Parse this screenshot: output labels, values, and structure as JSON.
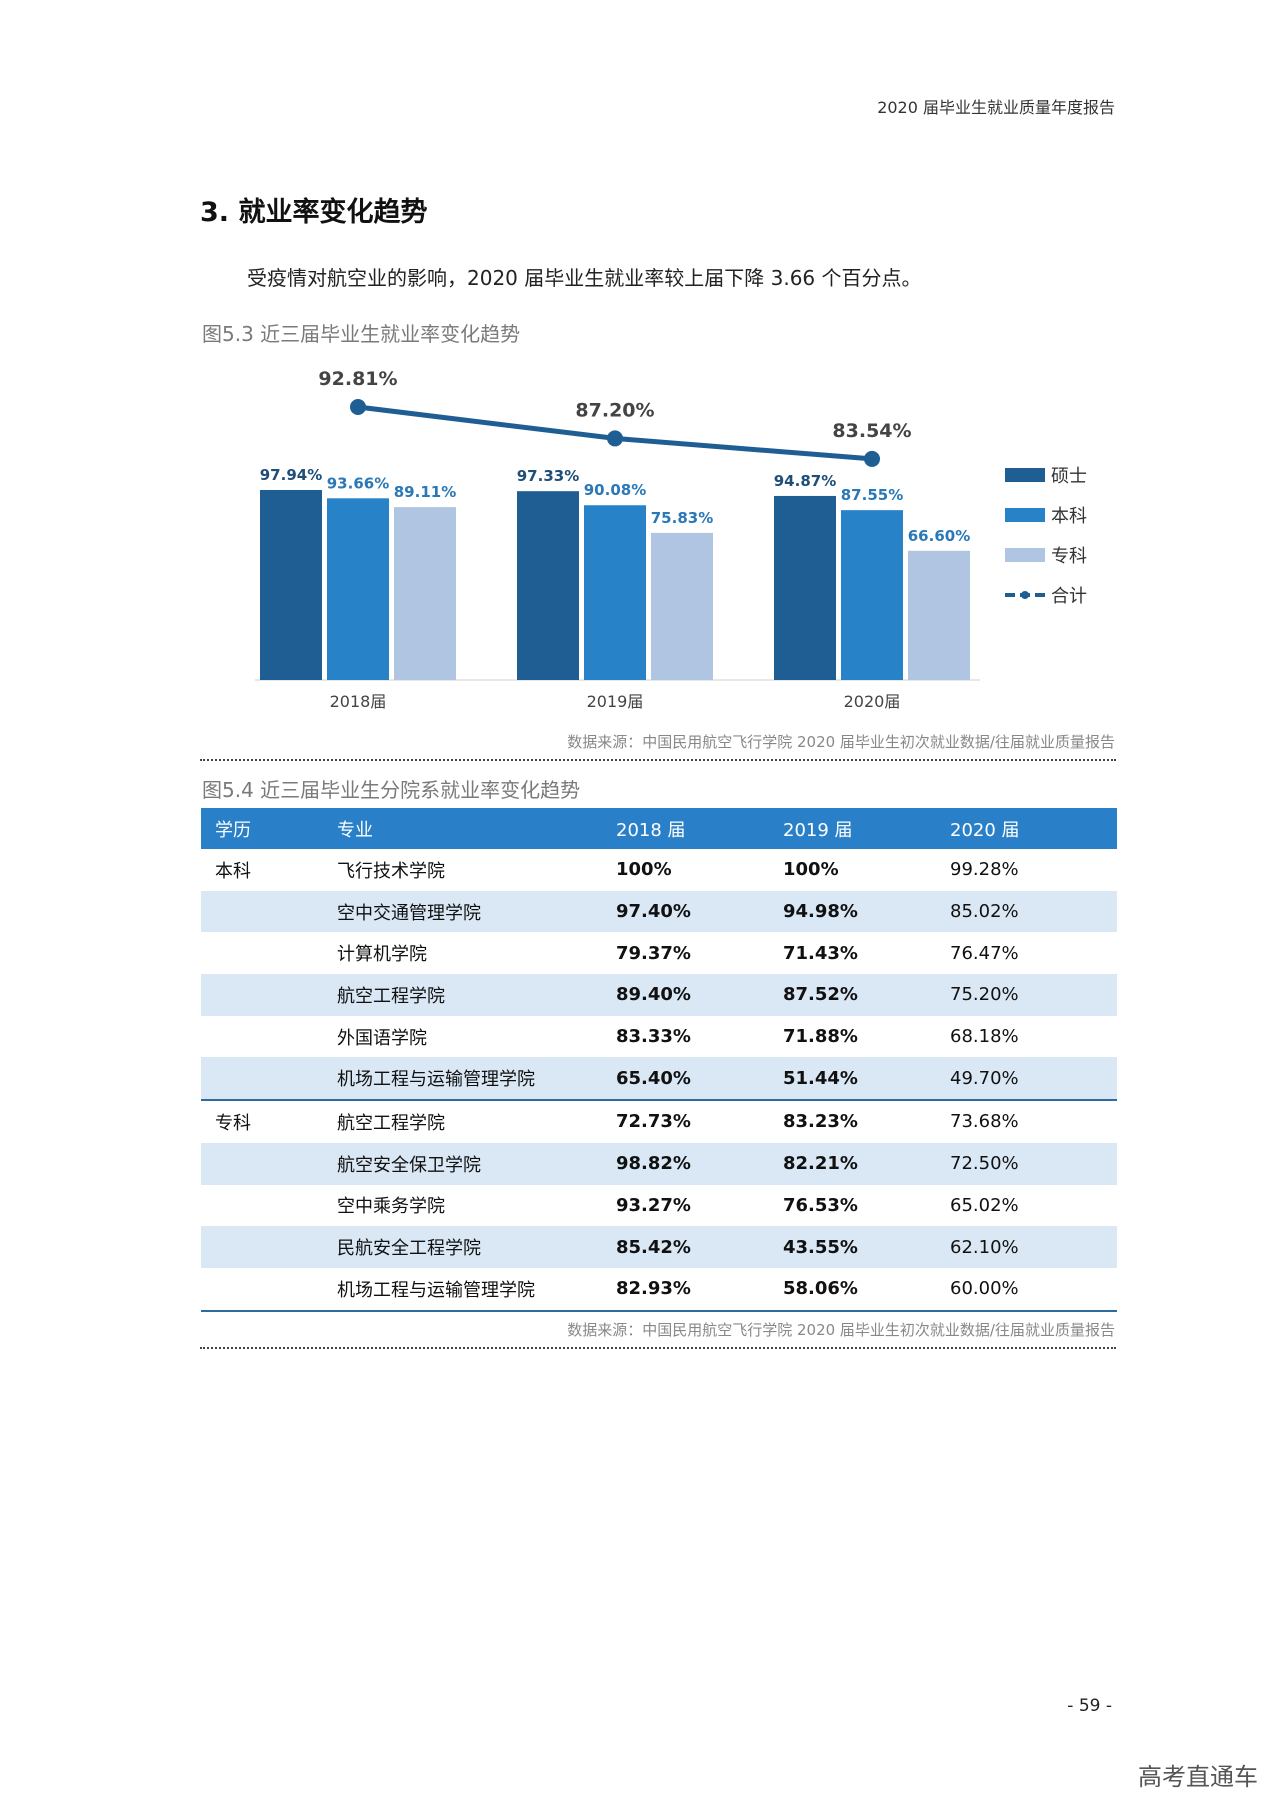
{
  "header": {
    "running_title": "2020 届毕业生就业质量年度报告"
  },
  "section": {
    "title": "3. 就业率变化趋势",
    "intro": "受疫情对航空业的影响，2020 届毕业生就业率较上届下降 3.66 个百分点。"
  },
  "figure1": {
    "caption": "图5.3 近三届毕业生就业率变化趋势",
    "source": "数据来源：中国民用航空飞行学院 2020 届毕业生初次就业数据/往届就业质量报告"
  },
  "chart_data": {
    "type": "bar",
    "categories": [
      "2018届",
      "2019届",
      "2020届"
    ],
    "series": [
      {
        "name": "硕士",
        "values": [
          97.94,
          97.33,
          94.87
        ],
        "labels": [
          "97.94%",
          "97.33%",
          "94.87%"
        ],
        "color": "#1f5e93"
      },
      {
        "name": "本科",
        "values": [
          93.66,
          90.08,
          87.55
        ],
        "labels": [
          "93.66%",
          "90.08%",
          "87.55%"
        ],
        "color": "#2882c8"
      },
      {
        "name": "专科",
        "values": [
          89.11,
          75.83,
          66.6
        ],
        "labels": [
          "89.11%",
          "75.83%",
          "66.60%"
        ],
        "color": "#b0c5e2"
      }
    ],
    "line_series": {
      "name": "合计",
      "values": [
        92.81,
        87.2,
        83.54
      ],
      "labels": [
        "92.81%",
        "87.20%",
        "83.54%"
      ],
      "color": "#1f5e93"
    },
    "legend_position": "right",
    "grid": false
  },
  "figure2": {
    "caption": "图5.4 近三届毕业生分院系就业率变化趋势",
    "source": "数据来源：中国民用航空飞行学院 2020 届毕业生初次就业数据/往届就业质量报告"
  },
  "table": {
    "headers": [
      "学历",
      "专业",
      "2018 届",
      "2019 届",
      "2020 届"
    ],
    "rows": [
      [
        "本科",
        "飞行技术学院",
        "100%",
        "100%",
        "99.28%"
      ],
      [
        "",
        "空中交通管理学院",
        "97.40%",
        "94.98%",
        "85.02%"
      ],
      [
        "",
        "计算机学院",
        "79.37%",
        "71.43%",
        "76.47%"
      ],
      [
        "",
        "航空工程学院",
        "89.40%",
        "87.52%",
        "75.20%"
      ],
      [
        "",
        "外国语学院",
        "83.33%",
        "71.88%",
        "68.18%"
      ],
      [
        "",
        "机场工程与运输管理学院",
        "65.40%",
        "51.44%",
        "49.70%"
      ],
      [
        "专科",
        "航空工程学院",
        "72.73%",
        "83.23%",
        "73.68%"
      ],
      [
        "",
        "航空安全保卫学院",
        "98.82%",
        "82.21%",
        "72.50%"
      ],
      [
        "",
        "空中乘务学院",
        "93.27%",
        "76.53%",
        "65.02%"
      ],
      [
        "",
        "民航安全工程学院",
        "85.42%",
        "43.55%",
        "62.10%"
      ],
      [
        "",
        "机场工程与运输管理学院",
        "82.93%",
        "58.06%",
        "60.00%"
      ]
    ]
  },
  "footer": {
    "page_number": "- 59 -",
    "watermark": "高考直通车"
  }
}
